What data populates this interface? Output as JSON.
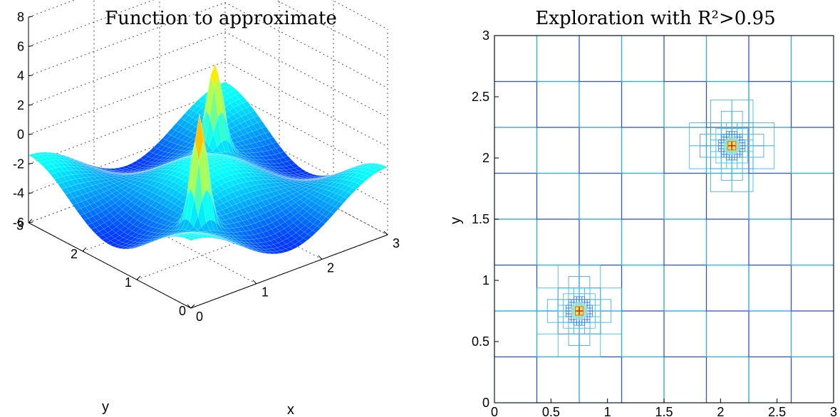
{
  "chart_data": [
    {
      "type": "surface",
      "title": "Function to approximate",
      "xlabel": "x",
      "ylabel": "y",
      "zlabel": "",
      "xlim": [
        0,
        3
      ],
      "ylim": [
        0,
        3
      ],
      "zlim": [
        -6,
        8
      ],
      "x_ticks": [
        "0",
        "1",
        "2",
        "3"
      ],
      "y_ticks": [
        "0",
        "1",
        "2",
        "3"
      ],
      "z_ticks": [
        "-6",
        "-4",
        "-2",
        "0",
        "2",
        "4",
        "6",
        "8"
      ],
      "grid": true,
      "colormap": "jet",
      "peaks": [
        {
          "x": 0.75,
          "y": 0.75,
          "z": 7.5
        },
        {
          "x": 2.1,
          "y": 2.1,
          "z": 4.0
        }
      ]
    },
    {
      "type": "adaptive-grid",
      "title": "Exploration with R²>0.95",
      "xlabel": "",
      "ylabel": "y",
      "xlim": [
        0,
        3
      ],
      "ylim": [
        0,
        3
      ],
      "x_ticks": [
        "0",
        "0.5",
        "1",
        "1.5",
        "2",
        "2.5",
        "3"
      ],
      "y_ticks": [
        "0",
        "0.5",
        "1",
        "1.5",
        "2",
        "2.5",
        "3"
      ],
      "base_grid_step": 0.375,
      "refinement_clusters": [
        {
          "x": 0.75,
          "y": 0.75,
          "extent": [
            0.38,
            1.12,
            0.38,
            1.12
          ]
        },
        {
          "x": 2.1,
          "y": 2.1,
          "extent": [
            1.73,
            2.47,
            1.73,
            2.47
          ]
        }
      ]
    }
  ]
}
